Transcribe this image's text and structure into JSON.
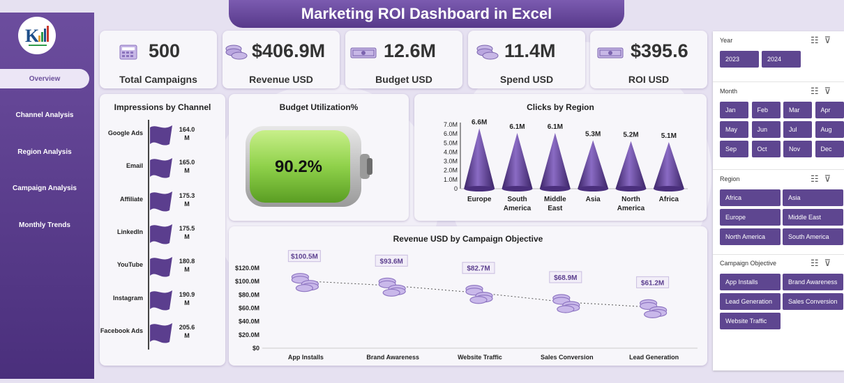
{
  "title": "Marketing ROI Dashboard in Excel",
  "nav": [
    {
      "label": "Overview",
      "active": true
    },
    {
      "label": "Channel Analysis"
    },
    {
      "label": "Region Analysis"
    },
    {
      "label": "Campaign Analysis"
    },
    {
      "label": "Monthly Trends"
    }
  ],
  "kpis": [
    {
      "value": "500",
      "label": "Total Campaigns",
      "icon": "calculator-icon"
    },
    {
      "value": "$406.9M",
      "label": "Revenue USD",
      "icon": "coins-icon"
    },
    {
      "value": "12.6M",
      "label": "Budget USD",
      "icon": "cash-icon"
    },
    {
      "value": "11.4M",
      "label": "Spend USD",
      "icon": "coins-icon"
    },
    {
      "value": "$395.6",
      "label": "ROI USD",
      "icon": "cash-icon"
    }
  ],
  "impressions": {
    "title": "Impressions by Channel",
    "items": [
      {
        "label": "Google Ads",
        "value_line1": "164.0",
        "value_line2": "M"
      },
      {
        "label": "Email",
        "value_line1": "165.0",
        "value_line2": "M"
      },
      {
        "label": "Affiliate",
        "value_line1": "175.3",
        "value_line2": "M"
      },
      {
        "label": "LinkedIn",
        "value_line1": "175.5",
        "value_line2": "M"
      },
      {
        "label": "YouTube",
        "value_line1": "180.8",
        "value_line2": "M"
      },
      {
        "label": "Instagram",
        "value_line1": "190.9",
        "value_line2": "M"
      },
      {
        "label": "Facebook Ads",
        "value_line1": "205.6",
        "value_line2": "M"
      }
    ]
  },
  "budget_util": {
    "title": "Budget Utilization%",
    "value": "90.2%",
    "fraction": 0.902
  },
  "chart_data": [
    {
      "type": "bar",
      "title": "Clicks by Region",
      "categories": [
        "Europe",
        "South America",
        "Middle East",
        "Asia",
        "North America",
        "Africa"
      ],
      "category_lines": [
        [
          "Europe"
        ],
        [
          "South",
          "America"
        ],
        [
          "Middle",
          "East"
        ],
        [
          "Asia"
        ],
        [
          "North",
          "America"
        ],
        [
          "Africa"
        ]
      ],
      "values": [
        6.6,
        6.1,
        6.1,
        5.3,
        5.2,
        5.1
      ],
      "data_labels": [
        "6.6M",
        "6.1M",
        "6.1M",
        "5.3M",
        "5.2M",
        "5.1M"
      ],
      "yticks": [
        "0",
        "1.0M",
        "2.0M",
        "3.0M",
        "4.0M",
        "5.0M",
        "6.0M",
        "7.0M"
      ],
      "ylim": [
        0,
        7
      ],
      "color": "#5b3e8e"
    },
    {
      "type": "line",
      "title": "Revenue USD by Campaign Objective",
      "categories": [
        "App Installs",
        "Brand Awareness",
        "Website Traffic",
        "Sales Conversion",
        "Lead Generation"
      ],
      "values": [
        100.5,
        93.6,
        82.7,
        68.9,
        61.2
      ],
      "data_labels": [
        "$100.5M",
        "$93.6M",
        "$82.7M",
        "$68.9M",
        "$61.2M"
      ],
      "yticks": [
        "$0",
        "$20.0M",
        "$40.0M",
        "$60.0M",
        "$80.0M",
        "$100.0M",
        "$120.0M"
      ],
      "ylim": [
        0,
        120
      ],
      "trendline": true,
      "color": "#a48fcf"
    }
  ],
  "slicers": {
    "year": {
      "title": "Year",
      "options": [
        "2023",
        "2024"
      ]
    },
    "month": {
      "title": "Month",
      "options": [
        "Jan",
        "Feb",
        "Mar",
        "Apr",
        "May",
        "Jun",
        "Jul",
        "Aug",
        "Sep",
        "Oct",
        "Nov",
        "Dec"
      ]
    },
    "region": {
      "title": "Region",
      "options": [
        "Africa",
        "Asia",
        "Europe",
        "Middle East",
        "North America",
        "South America"
      ]
    },
    "objective": {
      "title": "Campaign Objective",
      "options": [
        "App Installs",
        "Brand Awareness",
        "Lead Generation",
        "Sales Conversion",
        "Website Traffic"
      ]
    }
  }
}
